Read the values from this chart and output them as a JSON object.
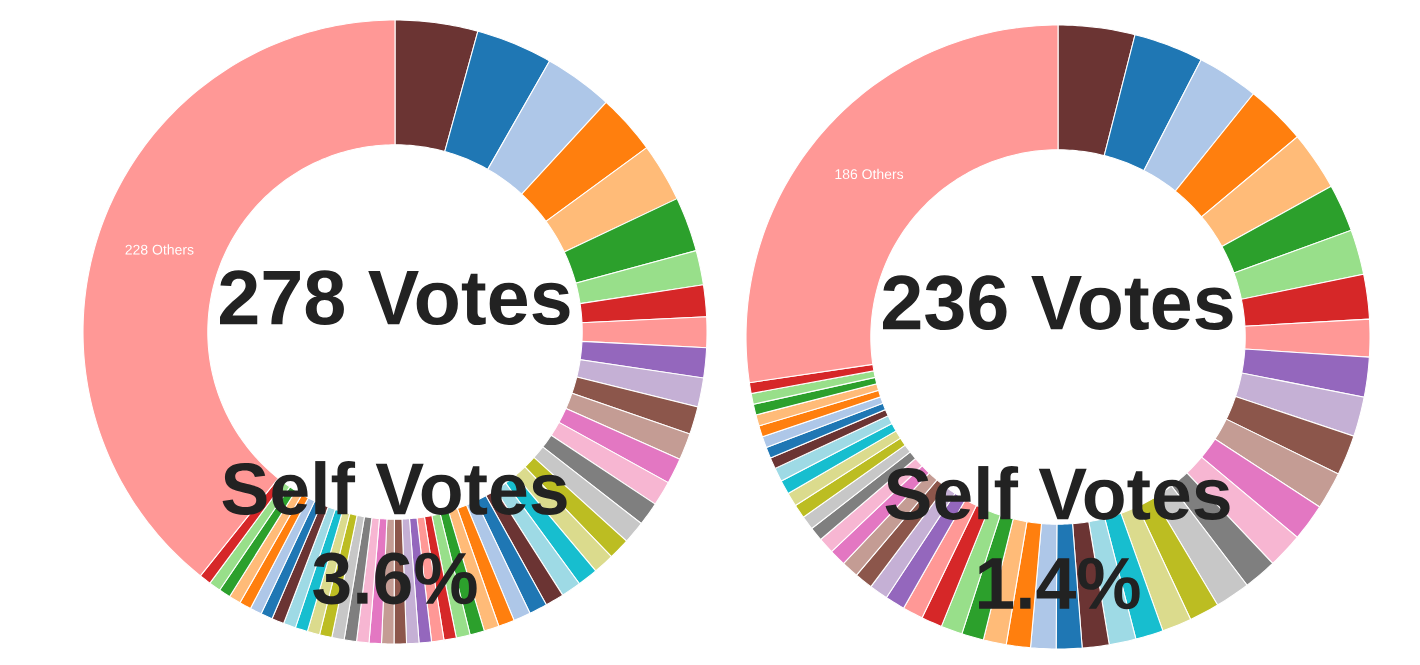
{
  "chart_data": [
    {
      "type": "donut",
      "categories": [
        null,
        null,
        null,
        null,
        null,
        null,
        null,
        null,
        null,
        null,
        null,
        null,
        null,
        null,
        null,
        null,
        null,
        null,
        null,
        null,
        null,
        null,
        null,
        null,
        null,
        null,
        null,
        null,
        null,
        null,
        null,
        null,
        null,
        null,
        null,
        null,
        null,
        null,
        null,
        null,
        null,
        null,
        null,
        null,
        null,
        null,
        null,
        null,
        null,
        null,
        "228 Others"
      ],
      "values": [
        4.28,
        3.97,
        3.58,
        3.11,
        3.03,
        2.83,
        1.78,
        1.64,
        1.58,
        1.56,
        1.5,
        1.44,
        1.39,
        1.33,
        1.28,
        1.22,
        1.17,
        1.11,
        1.08,
        1.06,
        1.03,
        0.97,
        0.94,
        0.89,
        0.83,
        0.78,
        0.75,
        0.72,
        0.64,
        0.64,
        0.64,
        0.64,
        0.64,
        0.64,
        0.64,
        0.64,
        0.64,
        0.64,
        0.64,
        0.64,
        0.64,
        0.64,
        0.64,
        0.61,
        0.61,
        0.61,
        0.61,
        0.61,
        0.61,
        0.61,
        39.28
      ],
      "colors": [
        "#6b3433",
        "#1f77b4",
        "#aec7e8",
        "#ff7f0e",
        "#ffbb78",
        "#2ca02c",
        "#98df8a",
        "#d62728",
        "#ff9896",
        "#9467bd",
        "#c5b0d5",
        "#8c564b",
        "#c49c94",
        "#e377c2",
        "#f7b6d2",
        "#7f7f7f",
        "#c7c7c7",
        "#bcbd22",
        "#dbdb8d",
        "#17becf",
        "#9edae5",
        "#6b3433",
        "#1f77b4",
        "#aec7e8",
        "#ff7f0e",
        "#ffbb78",
        "#2ca02c",
        "#98df8a",
        "#d62728",
        "#ff9896",
        "#9467bd",
        "#c5b0d5",
        "#8c564b",
        "#c49c94",
        "#e377c2",
        "#f7b6d2",
        "#7f7f7f",
        "#c7c7c7",
        "#bcbd22",
        "#dbdb8d",
        "#17becf",
        "#9edae5",
        "#6b3433",
        "#1f77b4",
        "#aec7e8",
        "#ff7f0e",
        "#ffbb78",
        "#2ca02c",
        "#98df8a",
        "#d62728",
        "#ff9896"
      ],
      "annotations": [
        "278 Votes",
        "Self Votes",
        "3.6%"
      ]
    },
    {
      "type": "donut",
      "categories": [
        null,
        null,
        null,
        null,
        null,
        null,
        null,
        null,
        null,
        null,
        null,
        null,
        null,
        null,
        null,
        null,
        null,
        null,
        null,
        null,
        null,
        null,
        null,
        null,
        null,
        null,
        null,
        null,
        null,
        null,
        null,
        null,
        null,
        null,
        null,
        null,
        null,
        null,
        null,
        null,
        null,
        null,
        null,
        null,
        null,
        null,
        null,
        null,
        null,
        null,
        "186 Others"
      ],
      "values": [
        3.97,
        3.61,
        3.19,
        3.14,
        3.06,
        2.47,
        2.33,
        2.31,
        1.94,
        2.06,
        2.06,
        2.08,
        1.94,
        1.92,
        1.83,
        1.72,
        1.81,
        1.56,
        1.53,
        1.44,
        1.39,
        1.39,
        1.33,
        1.31,
        1.25,
        1.19,
        1.14,
        1.11,
        1.08,
        1.06,
        1.03,
        0.97,
        0.94,
        0.89,
        0.86,
        0.83,
        0.72,
        0.72,
        0.72,
        0.72,
        0.72,
        0.72,
        0.58,
        0.58,
        0.58,
        0.58,
        0.58,
        0.56,
        0.56,
        0.56,
        27.33
      ],
      "colors": [
        "#6b3433",
        "#1f77b4",
        "#aec7e8",
        "#ff7f0e",
        "#ffbb78",
        "#2ca02c",
        "#98df8a",
        "#d62728",
        "#ff9896",
        "#9467bd",
        "#c5b0d5",
        "#8c564b",
        "#c49c94",
        "#e377c2",
        "#f7b6d2",
        "#7f7f7f",
        "#c7c7c7",
        "#bcbd22",
        "#dbdb8d",
        "#17becf",
        "#9edae5",
        "#6b3433",
        "#1f77b4",
        "#aec7e8",
        "#ff7f0e",
        "#ffbb78",
        "#2ca02c",
        "#98df8a",
        "#d62728",
        "#ff9896",
        "#9467bd",
        "#c5b0d5",
        "#8c564b",
        "#c49c94",
        "#e377c2",
        "#f7b6d2",
        "#7f7f7f",
        "#c7c7c7",
        "#bcbd22",
        "#dbdb8d",
        "#17becf",
        "#9edae5",
        "#6b3433",
        "#1f77b4",
        "#aec7e8",
        "#ff7f0e",
        "#ffbb78",
        "#2ca02c",
        "#98df8a",
        "#d62728",
        "#ff9896"
      ],
      "annotations": [
        "236 Votes",
        "Self Votes",
        "1.4%"
      ]
    }
  ]
}
